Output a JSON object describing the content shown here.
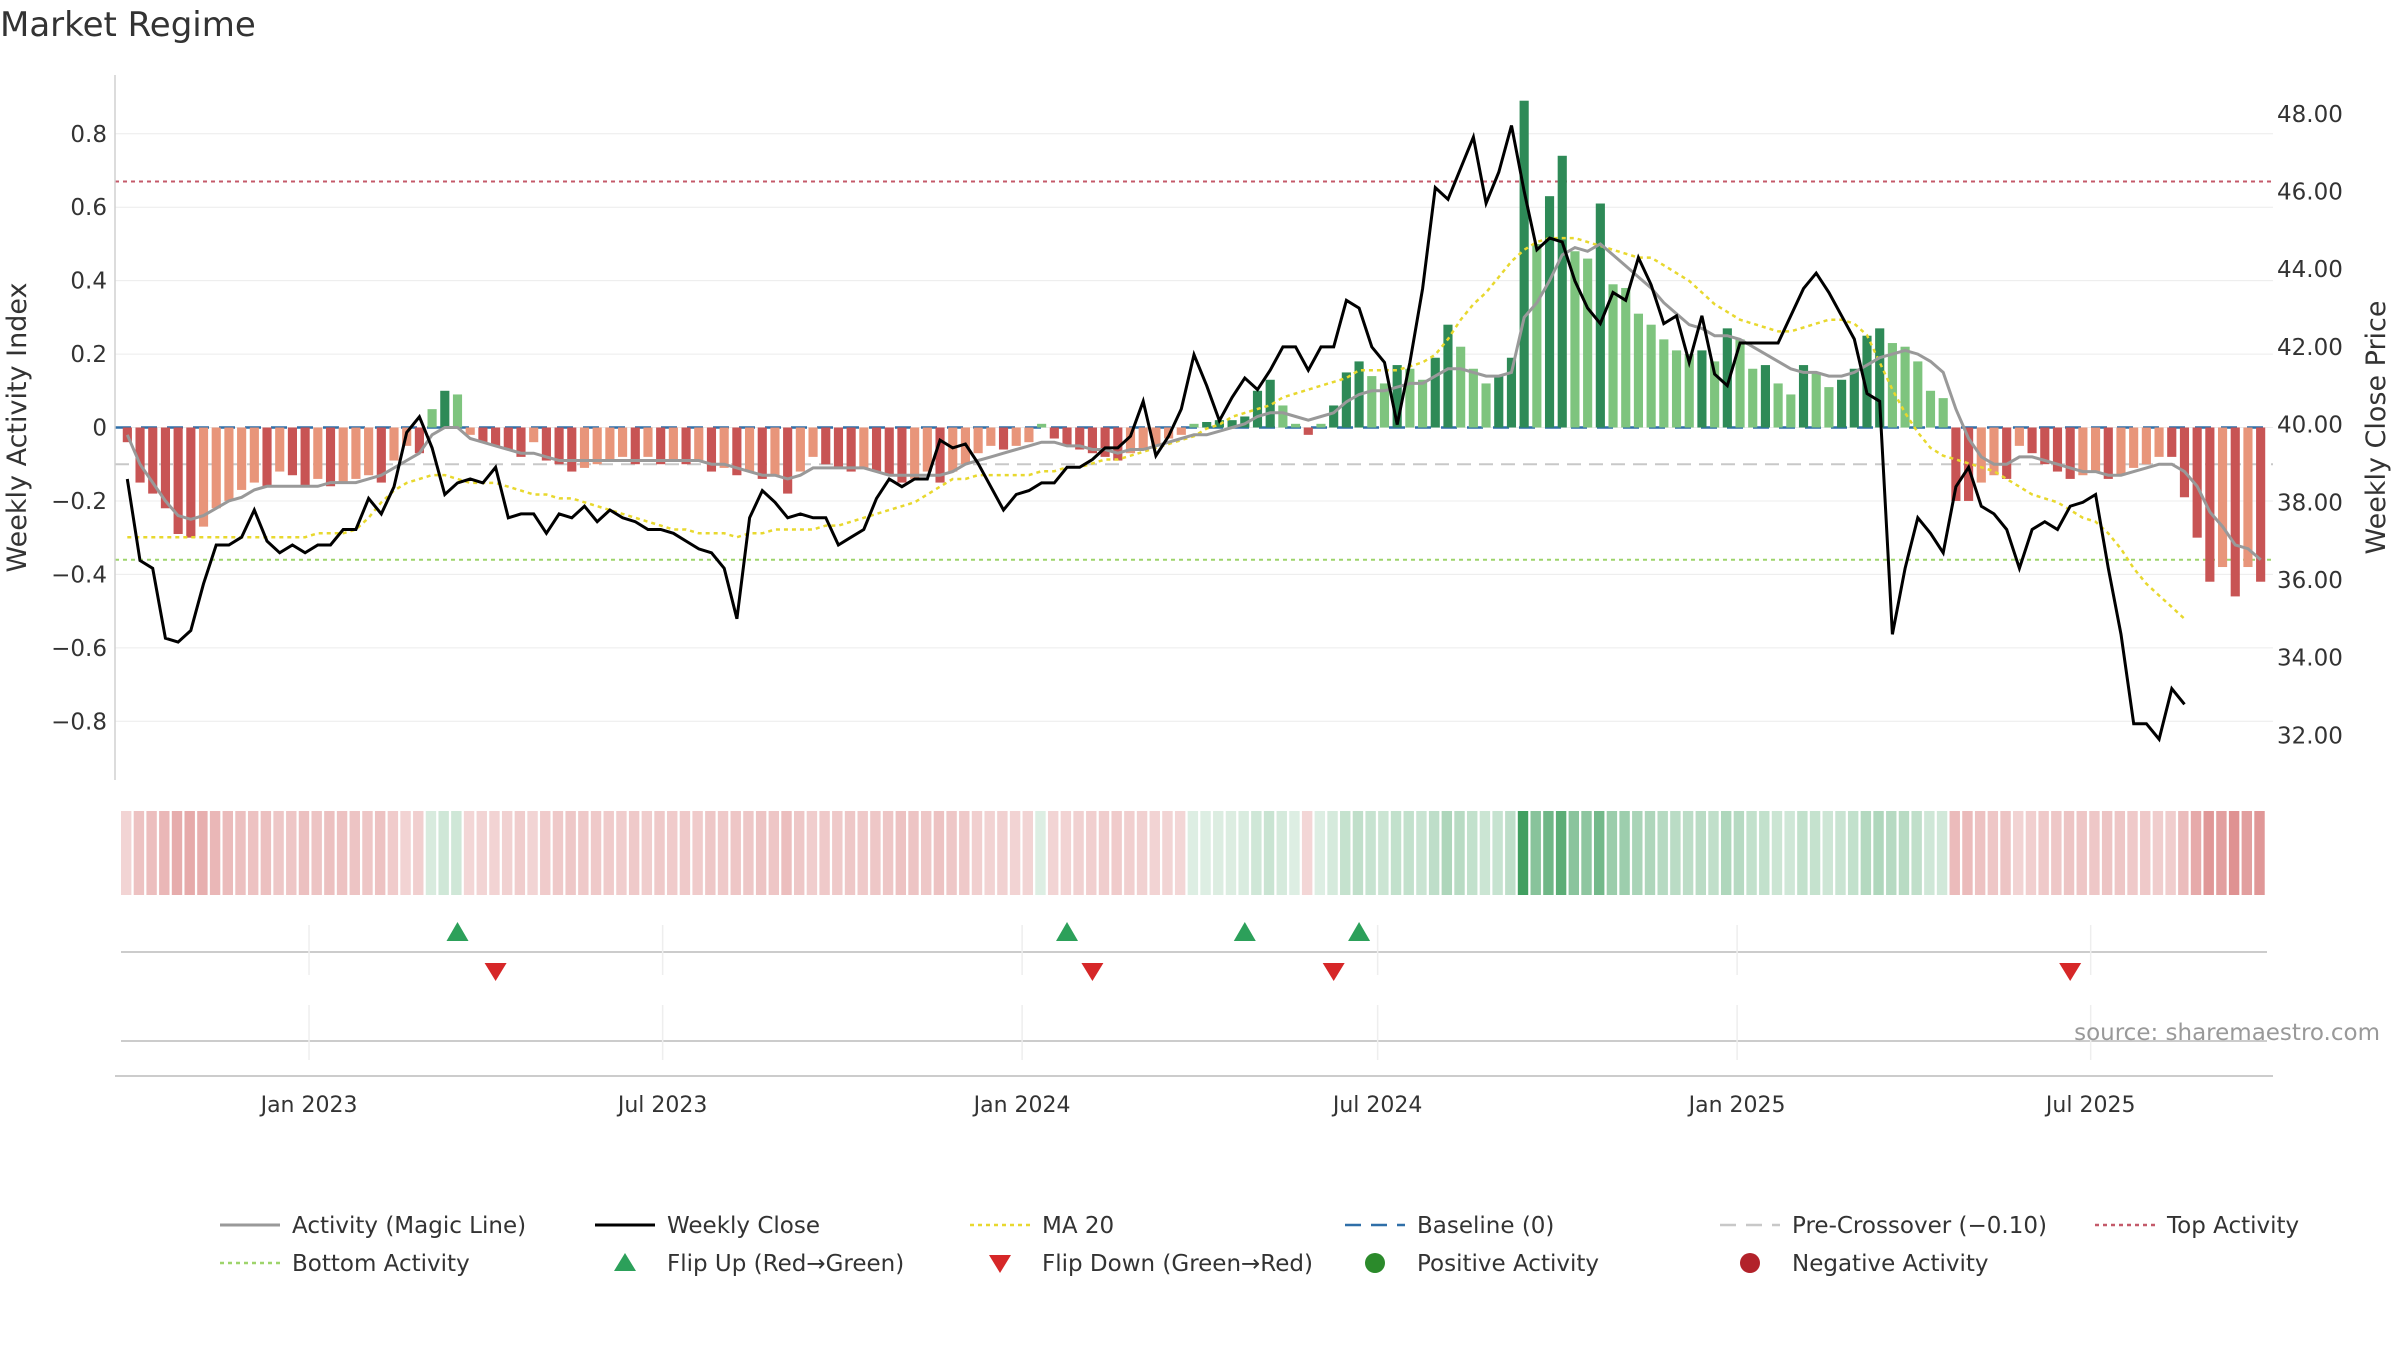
{
  "title": "Market Regime",
  "source": "source: sharemaestro.com",
  "chart_data": {
    "type": "bar",
    "left_axis": {
      "label": "Weekly Activity Index",
      "range": [
        -0.96,
        0.96
      ],
      "ticks": [
        -0.8,
        -0.6,
        -0.4,
        -0.2,
        0,
        0.2,
        0.4,
        0.6,
        0.8
      ],
      "tick_labels": [
        "−0.8",
        "−0.6",
        "−0.4",
        "−0.2",
        "0",
        "0.2",
        "0.4",
        "0.6",
        "0.8"
      ]
    },
    "right_axis": {
      "label": "Weekly Close Price",
      "range": [
        30.85,
        49.0
      ],
      "ticks": [
        32,
        34,
        36,
        38,
        40,
        42,
        44,
        46,
        48
      ],
      "tick_labels": [
        "32.00",
        "34.00",
        "36.00",
        "38.00",
        "40.00",
        "42.00",
        "44.00",
        "46.00",
        "48.00"
      ]
    },
    "x_axis": {
      "start": "2022-09-30",
      "end": "2025-09-26",
      "ticks": [
        "2023-01-01",
        "2023-07-01",
        "2024-01-01",
        "2024-07-01",
        "2025-01-01",
        "2025-07-01"
      ],
      "tick_labels": [
        "Jan 2023",
        "Jul 2023",
        "Jan 2024",
        "Jul 2024",
        "Jan 2025",
        "Jul 2025"
      ]
    },
    "reference_lines": {
      "top_activity": 0.67,
      "bottom_activity": -0.36,
      "baseline": 0,
      "pre_crossover": -0.1
    },
    "activity": [
      -0.04,
      -0.15,
      -0.18,
      -0.22,
      -0.29,
      -0.3,
      -0.27,
      -0.22,
      -0.2,
      -0.17,
      -0.15,
      -0.16,
      -0.12,
      -0.13,
      -0.16,
      -0.14,
      -0.16,
      -0.15,
      -0.14,
      -0.13,
      -0.15,
      -0.09,
      -0.05,
      -0.07,
      0.05,
      0.1,
      0.09,
      -0.02,
      -0.04,
      -0.05,
      -0.06,
      -0.08,
      -0.04,
      -0.09,
      -0.1,
      -0.12,
      -0.11,
      -0.1,
      -0.09,
      -0.08,
      -0.1,
      -0.08,
      -0.1,
      -0.09,
      -0.1,
      -0.09,
      -0.12,
      -0.11,
      -0.13,
      -0.12,
      -0.14,
      -0.13,
      -0.18,
      -0.12,
      -0.08,
      -0.1,
      -0.11,
      -0.12,
      -0.11,
      -0.12,
      -0.13,
      -0.15,
      -0.14,
      -0.12,
      -0.15,
      -0.12,
      -0.1,
      -0.07,
      -0.05,
      -0.06,
      -0.05,
      -0.04,
      0.01,
      -0.03,
      -0.05,
      -0.06,
      -0.07,
      -0.08,
      -0.09,
      -0.07,
      -0.06,
      -0.05,
      -0.03,
      -0.02,
      0.01,
      0.015,
      0.02,
      0.02,
      0.03,
      0.1,
      0.13,
      0.06,
      0.01,
      -0.02,
      0.01,
      0.06,
      0.15,
      0.18,
      0.14,
      0.12,
      0.17,
      0.16,
      0.13,
      0.19,
      0.28,
      0.22,
      0.16,
      0.12,
      0.14,
      0.19,
      0.89,
      0.5,
      0.63,
      0.74,
      0.48,
      0.46,
      0.61,
      0.39,
      0.38,
      0.31,
      0.28,
      0.24,
      0.21,
      0.2,
      0.21,
      0.18,
      0.27,
      0.24,
      0.16,
      0.17,
      0.12,
      0.09,
      0.17,
      0.15,
      0.11,
      0.13,
      0.16,
      0.25,
      0.27,
      0.23,
      0.22,
      0.18,
      0.1,
      0.08,
      -0.2,
      -0.2,
      -0.15,
      -0.13,
      -0.14,
      -0.05,
      -0.07,
      -0.1,
      -0.12,
      -0.14,
      -0.13,
      -0.12,
      -0.14,
      -0.13,
      -0.11,
      -0.1,
      -0.08,
      -0.08,
      -0.19,
      -0.3,
      -0.42,
      -0.38,
      -0.46,
      -0.38,
      -0.42
    ],
    "magic_line": [
      -0.02,
      -0.1,
      -0.15,
      -0.2,
      -0.24,
      -0.25,
      -0.24,
      -0.22,
      -0.2,
      -0.19,
      -0.17,
      -0.16,
      -0.16,
      -0.16,
      -0.16,
      -0.16,
      -0.15,
      -0.15,
      -0.15,
      -0.14,
      -0.13,
      -0.11,
      -0.09,
      -0.07,
      -0.02,
      0.0,
      0.0,
      -0.03,
      -0.04,
      -0.05,
      -0.06,
      -0.07,
      -0.07,
      -0.08,
      -0.09,
      -0.09,
      -0.09,
      -0.09,
      -0.09,
      -0.09,
      -0.09,
      -0.09,
      -0.09,
      -0.09,
      -0.09,
      -0.09,
      -0.1,
      -0.1,
      -0.11,
      -0.12,
      -0.13,
      -0.13,
      -0.14,
      -0.13,
      -0.11,
      -0.11,
      -0.11,
      -0.11,
      -0.11,
      -0.12,
      -0.13,
      -0.13,
      -0.13,
      -0.13,
      -0.13,
      -0.12,
      -0.1,
      -0.09,
      -0.08,
      -0.07,
      -0.06,
      -0.05,
      -0.04,
      -0.04,
      -0.05,
      -0.05,
      -0.06,
      -0.06,
      -0.07,
      -0.06,
      -0.06,
      -0.05,
      -0.04,
      -0.03,
      -0.02,
      -0.02,
      -0.01,
      0.0,
      0.01,
      0.03,
      0.04,
      0.04,
      0.03,
      0.02,
      0.03,
      0.04,
      0.07,
      0.09,
      0.1,
      0.1,
      0.11,
      0.12,
      0.12,
      0.14,
      0.16,
      0.16,
      0.15,
      0.14,
      0.14,
      0.15,
      0.3,
      0.34,
      0.4,
      0.47,
      0.49,
      0.48,
      0.5,
      0.47,
      0.44,
      0.41,
      0.38,
      0.34,
      0.31,
      0.28,
      0.27,
      0.25,
      0.25,
      0.24,
      0.22,
      0.2,
      0.18,
      0.16,
      0.15,
      0.15,
      0.14,
      0.14,
      0.15,
      0.17,
      0.19,
      0.2,
      0.21,
      0.2,
      0.18,
      0.15,
      0.05,
      -0.03,
      -0.08,
      -0.1,
      -0.1,
      -0.08,
      -0.08,
      -0.09,
      -0.1,
      -0.11,
      -0.12,
      -0.12,
      -0.13,
      -0.13,
      -0.12,
      -0.11,
      -0.1,
      -0.1,
      -0.12,
      -0.16,
      -0.23,
      -0.27,
      -0.32,
      -0.33,
      -0.36
    ],
    "weekly_close": [
      38.6,
      36.5,
      36.3,
      34.5,
      34.4,
      34.7,
      35.9,
      36.9,
      36.9,
      37.1,
      37.8,
      37.0,
      36.7,
      36.9,
      36.7,
      36.9,
      36.9,
      37.3,
      37.3,
      38.1,
      37.7,
      38.4,
      39.8,
      40.2,
      39.4,
      38.2,
      38.5,
      38.6,
      38.5,
      38.9,
      37.6,
      37.7,
      37.7,
      37.2,
      37.7,
      37.6,
      37.9,
      37.5,
      37.8,
      37.6,
      37.5,
      37.3,
      37.3,
      37.2,
      37.0,
      36.8,
      36.7,
      36.3,
      35.0,
      37.6,
      38.3,
      38.0,
      37.6,
      37.7,
      37.6,
      37.6,
      36.9,
      37.1,
      37.3,
      38.1,
      38.6,
      38.4,
      38.6,
      38.6,
      39.6,
      39.4,
      39.5,
      39.0,
      38.4,
      37.8,
      38.2,
      38.3,
      38.5,
      38.5,
      38.9,
      38.9,
      39.1,
      39.4,
      39.4,
      39.7,
      40.6,
      39.2,
      39.7,
      40.4,
      41.8,
      41.0,
      40.1,
      40.7,
      41.2,
      40.9,
      41.4,
      42.0,
      42.0,
      41.4,
      42.0,
      42.0,
      43.2,
      43.0,
      42.0,
      41.6,
      40.0,
      41.6,
      43.5,
      46.1,
      45.8,
      46.6,
      47.4,
      45.7,
      46.5,
      47.7,
      46.0,
      44.5,
      44.8,
      44.7,
      43.7,
      43.0,
      42.6,
      43.4,
      43.2,
      44.3,
      43.6,
      42.6,
      42.8,
      41.6,
      42.8,
      41.3,
      41.0,
      42.1,
      42.1,
      42.1,
      42.1,
      42.8,
      43.5,
      43.9,
      43.4,
      42.8,
      42.2,
      40.8,
      40.6,
      34.6,
      36.3,
      37.6,
      37.2,
      36.7,
      38.4,
      38.9,
      37.9,
      37.7,
      37.3,
      36.3,
      37.3,
      37.5,
      37.3,
      37.9,
      38.0,
      38.2,
      36.3,
      34.6,
      32.3,
      32.3,
      31.9,
      33.2,
      32.8
    ],
    "ma20": [
      37.1,
      37.1,
      37.1,
      37.1,
      37.1,
      37.1,
      37.1,
      37.1,
      37.1,
      37.1,
      37.1,
      37.1,
      37.1,
      37.1,
      37.1,
      37.2,
      37.2,
      37.2,
      37.3,
      37.6,
      38.0,
      38.3,
      38.5,
      38.6,
      38.7,
      38.7,
      38.6,
      38.5,
      38.5,
      38.5,
      38.4,
      38.3,
      38.2,
      38.2,
      38.1,
      38.1,
      38.0,
      37.9,
      37.8,
      37.7,
      37.6,
      37.5,
      37.4,
      37.3,
      37.3,
      37.2,
      37.2,
      37.2,
      37.1,
      37.2,
      37.2,
      37.3,
      37.3,
      37.3,
      37.3,
      37.4,
      37.4,
      37.5,
      37.6,
      37.7,
      37.8,
      37.9,
      38.0,
      38.2,
      38.4,
      38.6,
      38.6,
      38.7,
      38.7,
      38.7,
      38.7,
      38.7,
      38.8,
      38.8,
      38.9,
      38.9,
      39.0,
      39.1,
      39.1,
      39.2,
      39.3,
      39.4,
      39.5,
      39.6,
      39.7,
      39.9,
      40.0,
      40.2,
      40.3,
      40.4,
      40.5,
      40.7,
      40.8,
      40.9,
      41.0,
      41.1,
      41.2,
      41.4,
      41.4,
      41.4,
      41.4,
      41.5,
      41.6,
      41.8,
      42.2,
      42.7,
      43.1,
      43.4,
      43.8,
      44.2,
      44.5,
      44.7,
      44.8,
      44.8,
      44.8,
      44.7,
      44.6,
      44.5,
      44.4,
      44.3,
      44.3,
      44.1,
      43.9,
      43.7,
      43.4,
      43.1,
      42.9,
      42.7,
      42.6,
      42.5,
      42.4,
      42.4,
      42.5,
      42.6,
      42.7,
      42.7,
      42.6,
      42.3,
      41.6,
      40.9,
      40.3,
      39.8,
      39.4,
      39.2,
      39.1,
      39.0,
      38.9,
      38.8,
      38.6,
      38.4,
      38.2,
      38.1,
      38.0,
      37.8,
      37.6,
      37.5,
      37.2,
      36.8,
      36.3,
      35.9,
      35.6,
      35.3,
      35.0
    ],
    "flip_up_weeks": [
      26,
      74,
      88,
      97
    ],
    "flip_down_weeks": [
      29,
      76,
      95,
      153
    ],
    "legend": {
      "placement": "bottom",
      "items": [
        {
          "name": "Activity (Magic Line)",
          "symbol": "line",
          "color": "#999999"
        },
        {
          "name": "Weekly Close",
          "symbol": "line",
          "color": "#000000"
        },
        {
          "name": "MA 20",
          "symbol": "dotted",
          "color": "#e8d82e"
        },
        {
          "name": "Baseline (0)",
          "symbol": "dashed",
          "color": "#2f6fa8"
        },
        {
          "name": "Pre-Crossover (−0.10)",
          "symbol": "dashed",
          "color": "#c8c8c8"
        },
        {
          "name": "Top Activity",
          "symbol": "dotted",
          "color": "#c45a6a"
        },
        {
          "name": "Bottom Activity",
          "symbol": "dotted",
          "color": "#9ed46b"
        },
        {
          "name": "Flip Up (Red→Green)",
          "symbol": "triangle-up",
          "color": "#2ca05a"
        },
        {
          "name": "Flip Down (Green→Red)",
          "symbol": "triangle-down",
          "color": "#d62728"
        },
        {
          "name": "Positive Activity",
          "symbol": "circle",
          "color": "#2b8a2b"
        },
        {
          "name": "Negative Activity",
          "symbol": "circle",
          "color": "#b2222a"
        }
      ]
    },
    "colors": {
      "strong_green": "#2e8a57",
      "light_green": "#7ec47e",
      "strong_red": "#c85454",
      "light_red": "#e8957a"
    }
  }
}
